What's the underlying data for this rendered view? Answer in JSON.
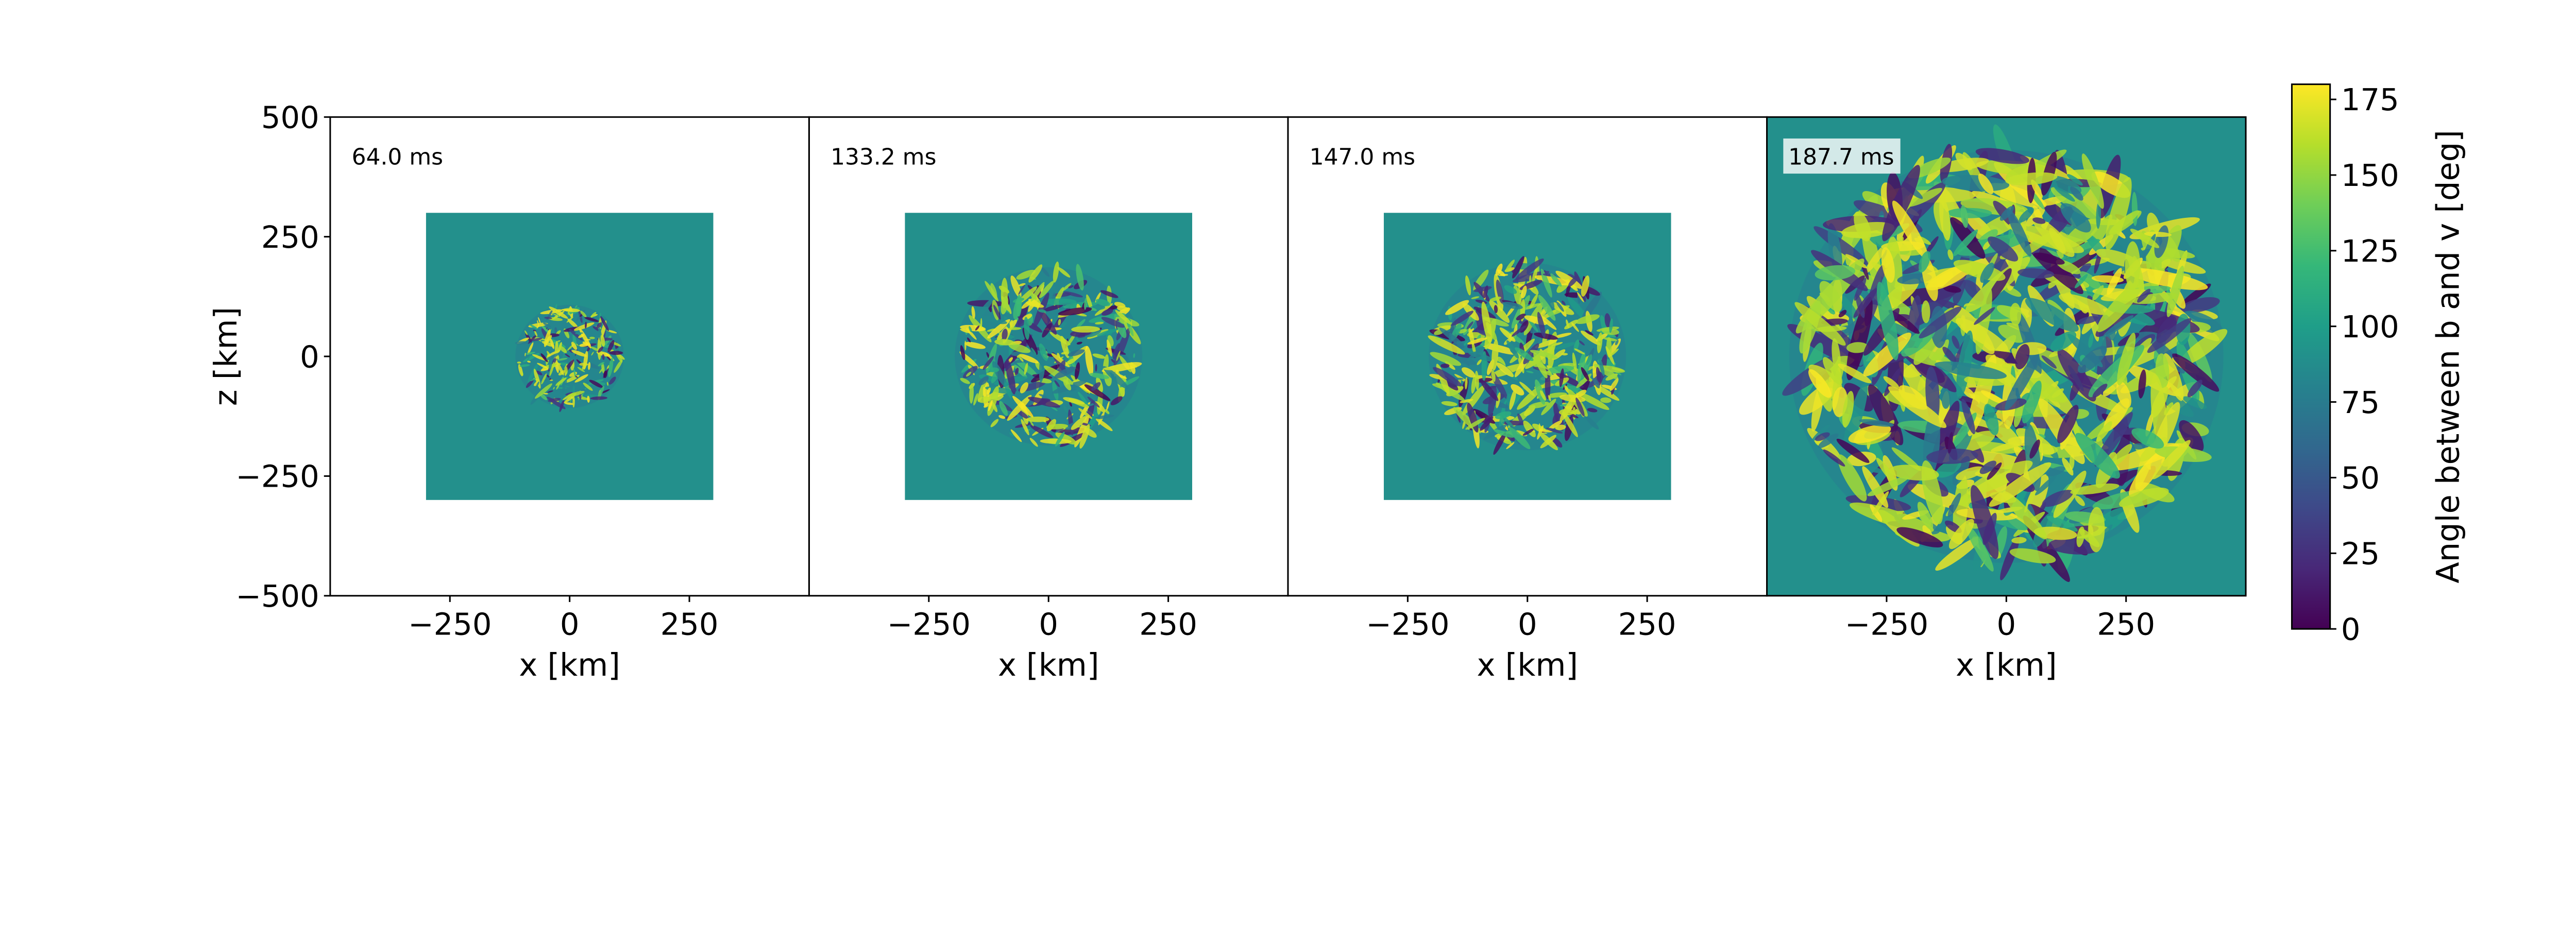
{
  "chart_data": {
    "type": "heatmap",
    "colormap": "viridis",
    "colorbar": {
      "label": "Angle between b and v [deg]",
      "range": [
        0,
        180
      ],
      "ticks": [
        "0",
        "25",
        "50",
        "75",
        "100",
        "125",
        "150",
        "175"
      ],
      "tick_values": [
        0,
        25,
        50,
        75,
        100,
        125,
        150,
        175
      ],
      "colors": [
        "#440154",
        "#482878",
        "#3e4989",
        "#31688e",
        "#26828e",
        "#1f9e89",
        "#35b779",
        "#6ece58",
        "#b5de2b",
        "#fde725"
      ]
    },
    "xlabel": "x [km]",
    "ylabel": "z [km]",
    "xlim": [
      -500,
      500
    ],
    "ylim": [
      -500,
      500
    ],
    "xticks": [
      "−250",
      "0",
      "250"
    ],
    "xtick_values": [
      -250,
      0,
      250
    ],
    "yticks": [
      "500",
      "250",
      "0",
      "−250",
      "−500"
    ],
    "ytick_values": [
      500,
      250,
      0,
      -250,
      -500
    ],
    "background_value_deg": 90,
    "panels": [
      {
        "time": "64.0 ms",
        "data_extent_km": [
          -300,
          300,
          -300,
          300
        ],
        "turbulent_radius_km": 110,
        "label_box": false
      },
      {
        "time": "133.2 ms",
        "data_extent_km": [
          -300,
          300,
          -300,
          300
        ],
        "turbulent_radius_km": 190,
        "label_box": false
      },
      {
        "time": "147.0 ms",
        "data_extent_km": [
          -300,
          300,
          -300,
          300
        ],
        "turbulent_radius_km": 200,
        "label_box": false
      },
      {
        "time": "187.7 ms",
        "data_extent_km": [
          -500,
          500,
          -500,
          500
        ],
        "turbulent_radius_km": 440,
        "label_box": true
      }
    ]
  }
}
